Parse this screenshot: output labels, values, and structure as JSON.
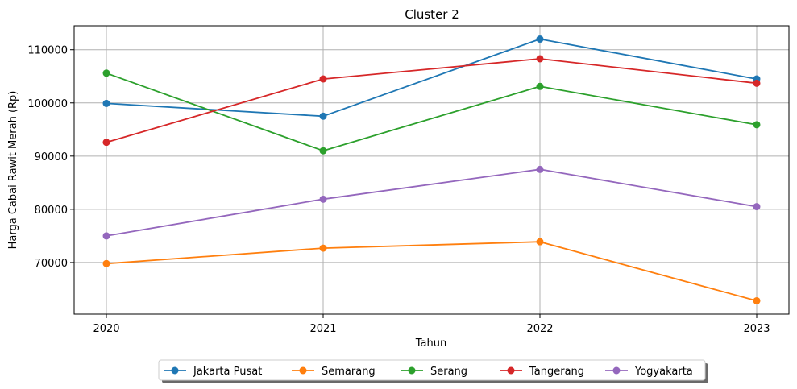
{
  "chart_data": {
    "type": "line",
    "title": "Cluster 2",
    "xlabel": "Tahun",
    "ylabel": "Harga Cabai Rawit Merah (Rp)",
    "categories": [
      "2020",
      "2021",
      "2022",
      "2023"
    ],
    "yticks": [
      "70000",
      "80000",
      "90000",
      "100000",
      "110000"
    ],
    "ylim": [
      60300,
      114500
    ],
    "grid": true,
    "legend_position": "bottom-center",
    "series": [
      {
        "name": "Jakarta Pusat",
        "color": "#1f77b4",
        "values": [
          99900,
          97500,
          112000,
          104500
        ]
      },
      {
        "name": "Semarang",
        "color": "#ff7f0e",
        "values": [
          69800,
          72700,
          73900,
          62800
        ]
      },
      {
        "name": "Serang",
        "color": "#2ca02c",
        "values": [
          105600,
          91000,
          103100,
          95900
        ]
      },
      {
        "name": "Tangerang",
        "color": "#d62728",
        "values": [
          92600,
          104500,
          108300,
          103700
        ]
      },
      {
        "name": "Yogyakarta",
        "color": "#9467bd",
        "values": [
          75000,
          81900,
          87500,
          80500
        ]
      }
    ]
  }
}
